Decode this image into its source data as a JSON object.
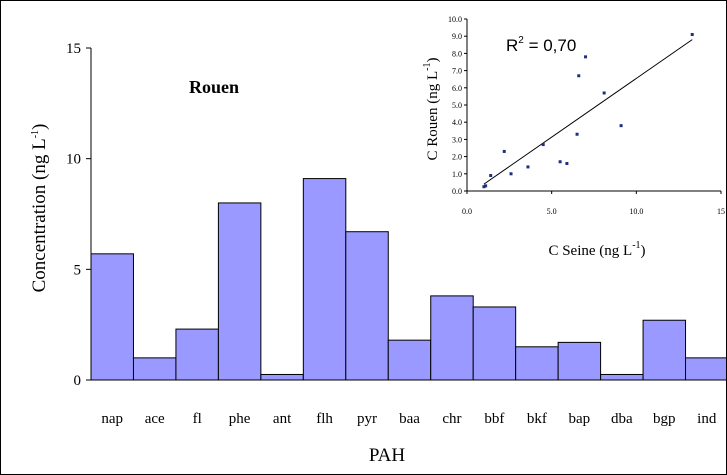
{
  "chart_data": [
    {
      "type": "bar",
      "title": "Rouen",
      "xlabel": "PAH",
      "ylabel": "Concentration (ng L",
      "ylabel_sup": "-1",
      "ylabel_end": ")",
      "ylim": [
        0,
        15
      ],
      "yticks": [
        "0",
        "5",
        "10",
        "15"
      ],
      "categories": [
        "nap",
        "ace",
        "fl",
        "phe",
        "ant",
        "flh",
        "pyr",
        "baa",
        "chr",
        "bbf",
        "bkf",
        "bap",
        "dba",
        "bgp",
        "ind"
      ],
      "values": [
        5.7,
        1.0,
        2.3,
        8.0,
        0.25,
        9.1,
        6.7,
        1.8,
        3.8,
        3.3,
        1.5,
        1.7,
        0.25,
        2.7,
        1.0
      ],
      "bar_color": "#9999FF",
      "grid": false
    },
    {
      "type": "scatter",
      "xlabel": "C Seine (ng L",
      "xlabel_sup": "-1",
      "xlabel_end": ")",
      "ylabel": "C Rouen (ng L",
      "ylabel_sup": "-1",
      "ylabel_end": ")",
      "xlim": [
        0,
        15
      ],
      "ylim": [
        0,
        10
      ],
      "xticks": [
        "0.0",
        "5.0",
        "10.0",
        "15"
      ],
      "yticks": [
        "0.0",
        "1.0",
        "2.0",
        "3.0",
        "4.0",
        "5.0",
        "6.0",
        "7.0",
        "8.0",
        "9.0",
        "10.0"
      ],
      "annotation_base": "R",
      "annotation_sup": "2",
      "annotation_value": " = 0,70",
      "points": [
        [
          1.0,
          0.25
        ],
        [
          1.1,
          0.3
        ],
        [
          1.4,
          0.9
        ],
        [
          2.2,
          2.3
        ],
        [
          2.6,
          1.0
        ],
        [
          3.6,
          1.4
        ],
        [
          4.5,
          2.7
        ],
        [
          5.5,
          1.7
        ],
        [
          5.9,
          1.6
        ],
        [
          6.5,
          3.3
        ],
        [
          6.6,
          6.7
        ],
        [
          7.0,
          7.8
        ],
        [
          8.1,
          5.7
        ],
        [
          9.1,
          3.8
        ],
        [
          13.3,
          9.1
        ]
      ],
      "trendline": [
        [
          1.0,
          0.4
        ],
        [
          13.3,
          8.8
        ]
      ],
      "marker_color": "#1F2F7F"
    }
  ]
}
